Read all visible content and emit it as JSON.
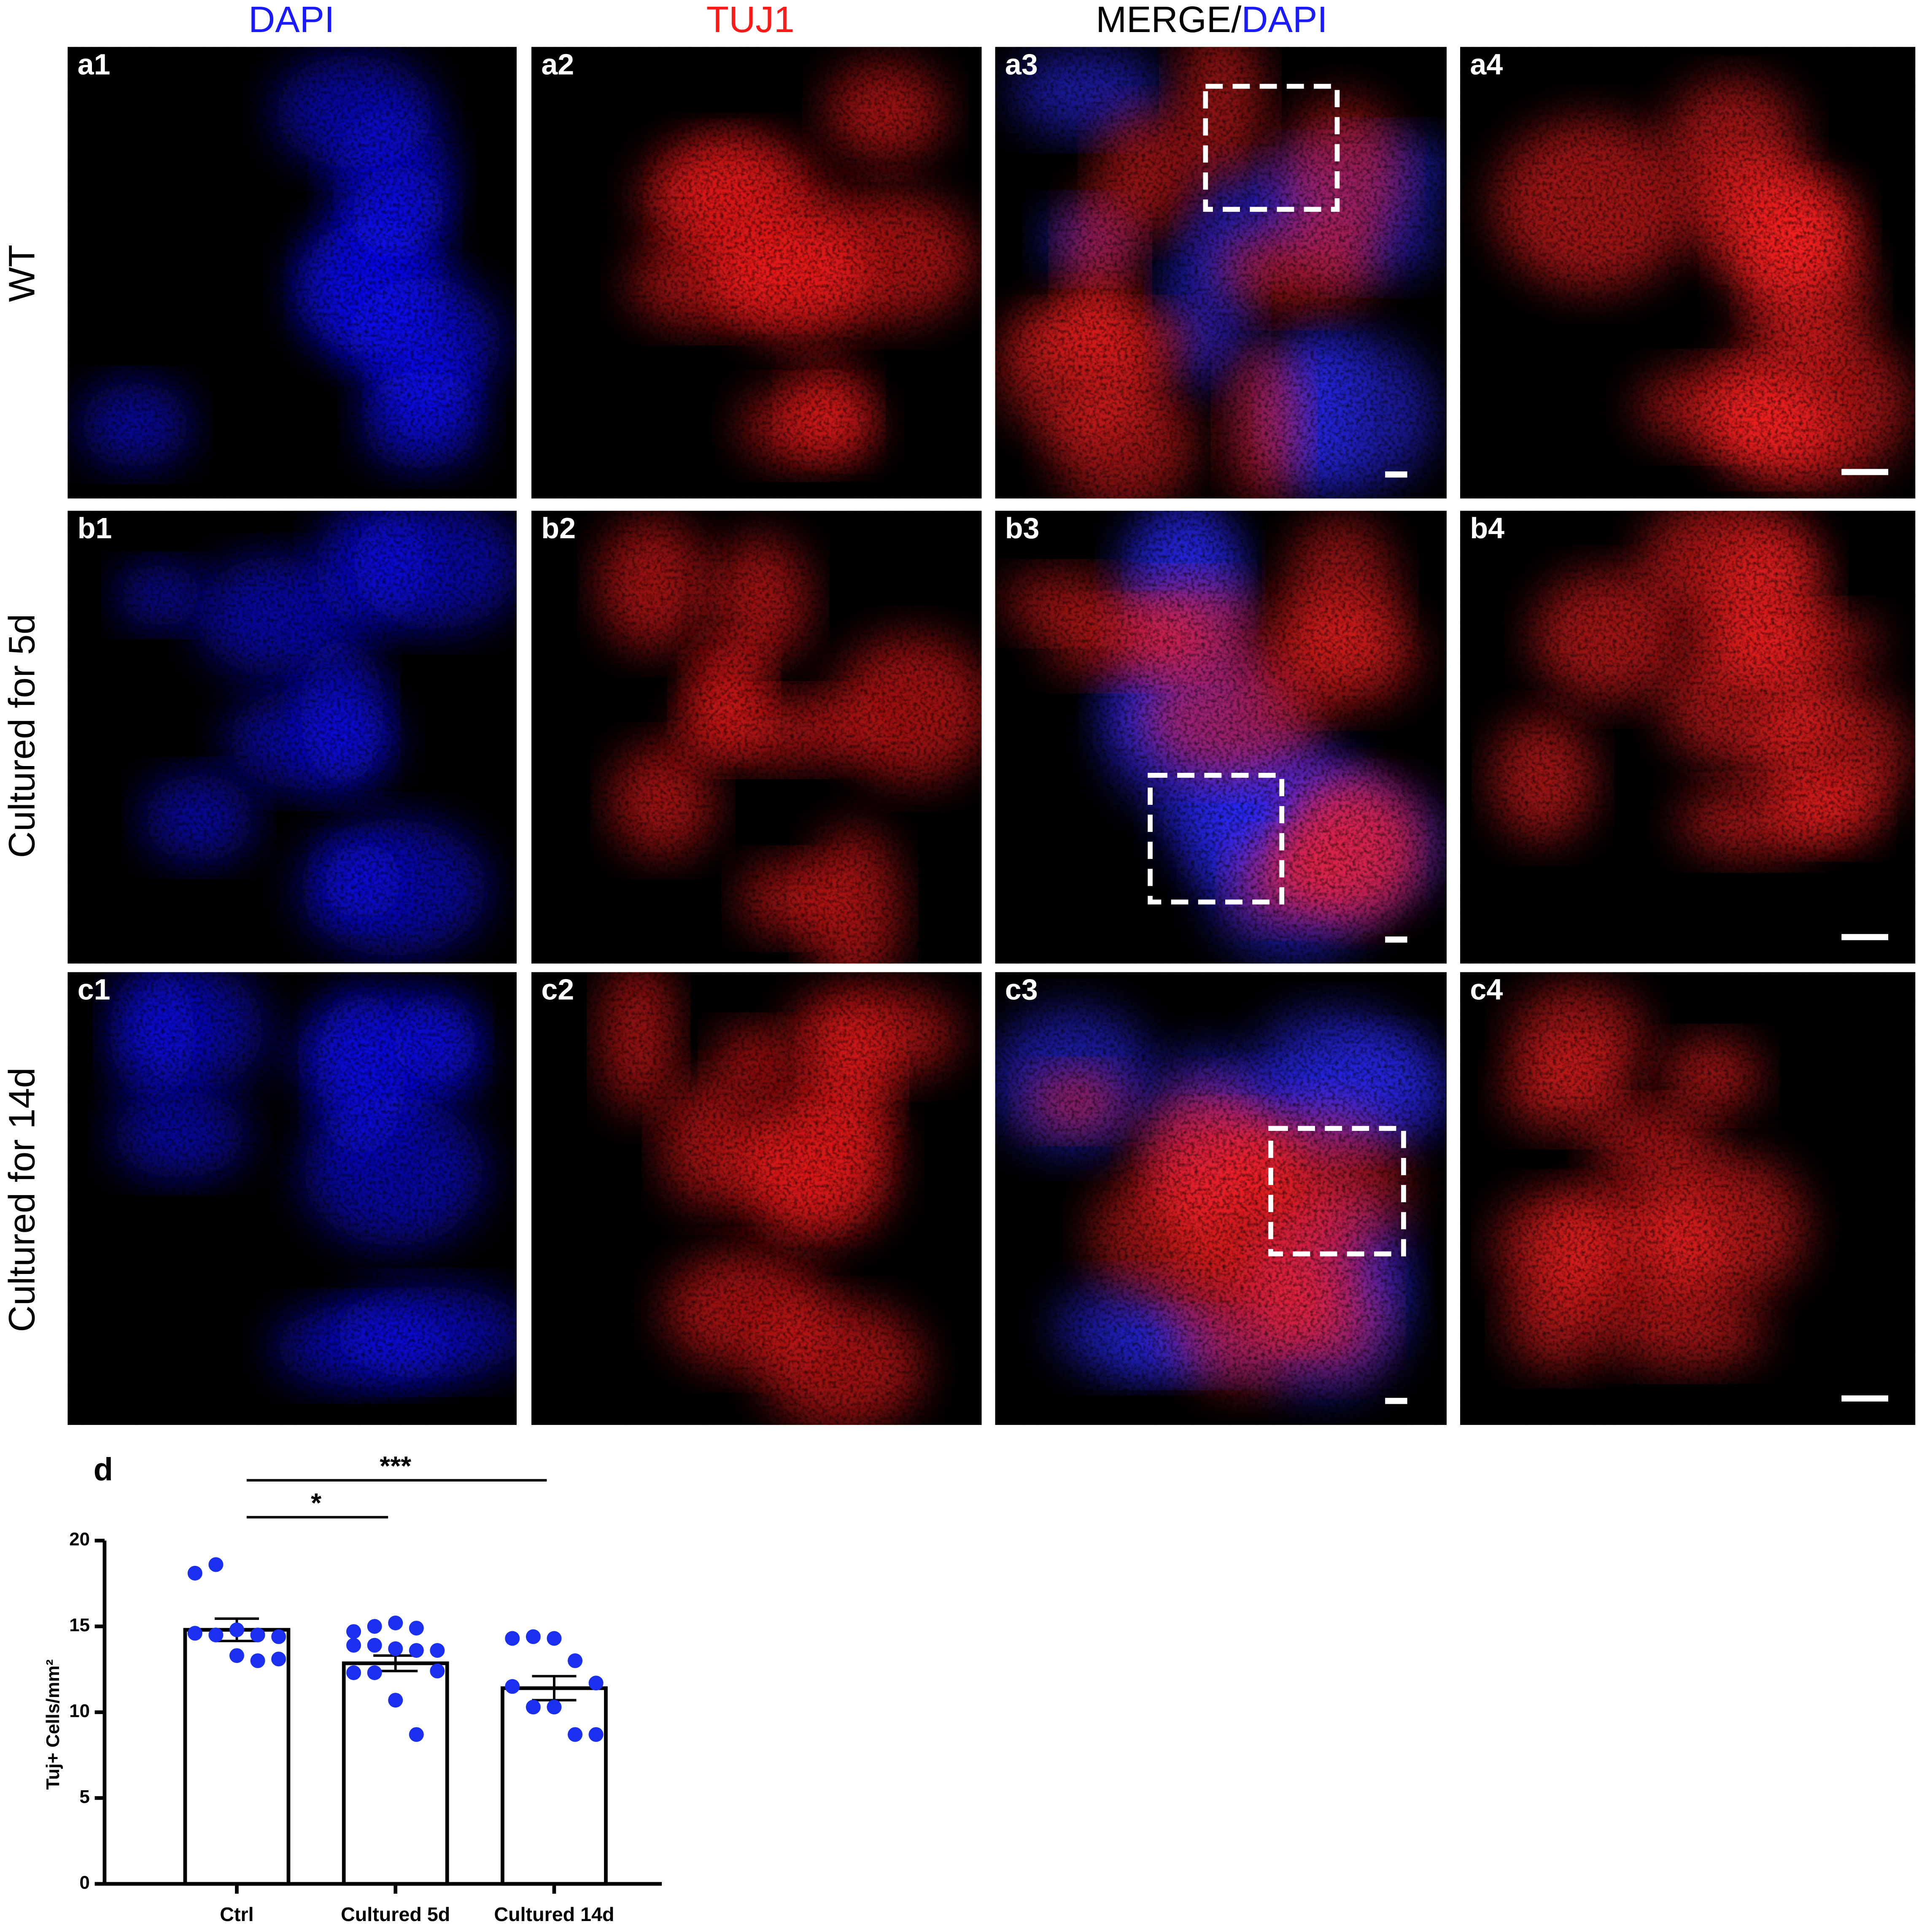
{
  "headers": {
    "dapi": "DAPI",
    "tuj1": "TUJ1",
    "merge": "MERGE/",
    "merge_dapi": "DAPI"
  },
  "rows": [
    "WT",
    "Cultured for 5d",
    "Cultured for 14d"
  ],
  "panels": [
    [
      "a1",
      "a2",
      "a3",
      "a4"
    ],
    [
      "b1",
      "b2",
      "b3",
      "b4"
    ],
    [
      "c1",
      "c2",
      "c3",
      "c4"
    ]
  ],
  "panel_d": "d",
  "chart_data": {
    "type": "bar",
    "y_label": "Tuj+ Cells/mm²",
    "categories": [
      "Ctrl",
      "Cultured 5d",
      "Cultured 14d"
    ],
    "values": [
      14.8,
      12.85,
      11.4
    ],
    "errors": [
      0.65,
      0.45,
      0.7
    ],
    "points": [
      [
        18.1,
        18.6,
        14.8,
        14.5,
        14.4,
        14.6,
        14.5,
        13.3,
        13.0,
        13.1
      ],
      [
        14.7,
        15.0,
        15.2,
        14.9,
        13.6,
        13.9,
        13.9,
        13.7,
        13.6,
        12.4,
        12.3,
        12.3,
        10.7,
        8.7
      ],
      [
        14.3,
        14.4,
        14.3,
        13.0,
        11.7,
        11.5,
        10.3,
        10.3,
        8.7,
        8.7
      ]
    ],
    "bar_color": "#ffffff",
    "point_color": "#1a2ff0",
    "ylim": [
      0,
      20
    ],
    "yticks": [
      0,
      5,
      10,
      15,
      20
    ],
    "annotations": [
      "***",
      "*"
    ]
  }
}
